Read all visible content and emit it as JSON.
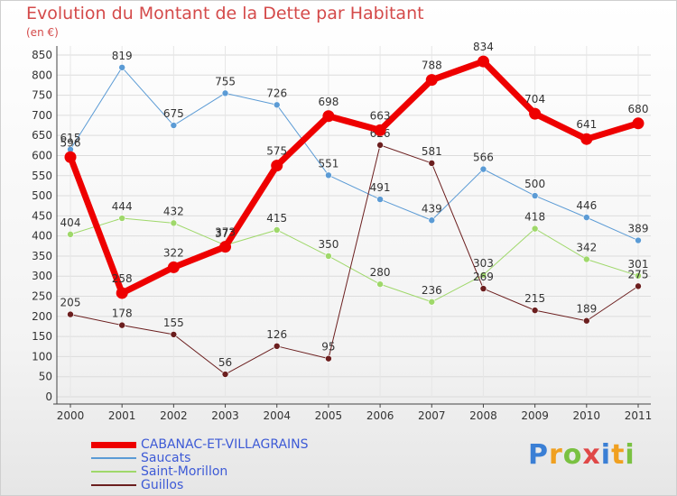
{
  "header": {
    "title": "Evolution du Montant de la Dette par Habitant",
    "unit": "(en €)"
  },
  "brand": {
    "letters": [
      "P",
      "r",
      "o",
      "x",
      "i",
      "t",
      "i"
    ],
    "colors": [
      "#3a7fd5",
      "#f0a020",
      "#7ac142",
      "#e04848",
      "#3a7fd5",
      "#f0a020",
      "#7ac142"
    ]
  },
  "chart_data": {
    "type": "line",
    "title": "Evolution du Montant de la Dette par Habitant",
    "subtitle": "(en €)",
    "xlabel": "",
    "ylabel": "",
    "x": [
      "2000",
      "2001",
      "2002",
      "2003",
      "2004",
      "2005",
      "2006",
      "2007",
      "2008",
      "2009",
      "2010",
      "2011"
    ],
    "ylim": [
      0,
      850
    ],
    "yticks": [
      0,
      50,
      100,
      150,
      200,
      250,
      300,
      350,
      400,
      450,
      500,
      550,
      600,
      650,
      700,
      750,
      800,
      850
    ],
    "grid": true,
    "legend": "bottom-left",
    "series": [
      {
        "name": "Saucats",
        "color": "#5b9bd5",
        "width": 1,
        "values": [
          615,
          819,
          675,
          755,
          726,
          551,
          491,
          439,
          566,
          500,
          446,
          389
        ]
      },
      {
        "name": "Saint-Morillon",
        "color": "#9fd86a",
        "width": 1,
        "values": [
          404,
          444,
          432,
          377,
          415,
          350,
          280,
          236,
          303,
          418,
          342,
          301
        ]
      },
      {
        "name": "Guillos",
        "color": "#6b1e1e",
        "width": 1,
        "values": [
          205,
          178,
          155,
          56,
          126,
          95,
          626,
          581,
          269,
          215,
          189,
          275
        ]
      },
      {
        "name": "CABANAC-ET-VILLAGRAINS",
        "color": "#ee0000",
        "width": 7,
        "values": [
          596,
          258,
          322,
          373,
          575,
          698,
          663,
          788,
          834,
          704,
          641,
          680
        ]
      }
    ]
  }
}
